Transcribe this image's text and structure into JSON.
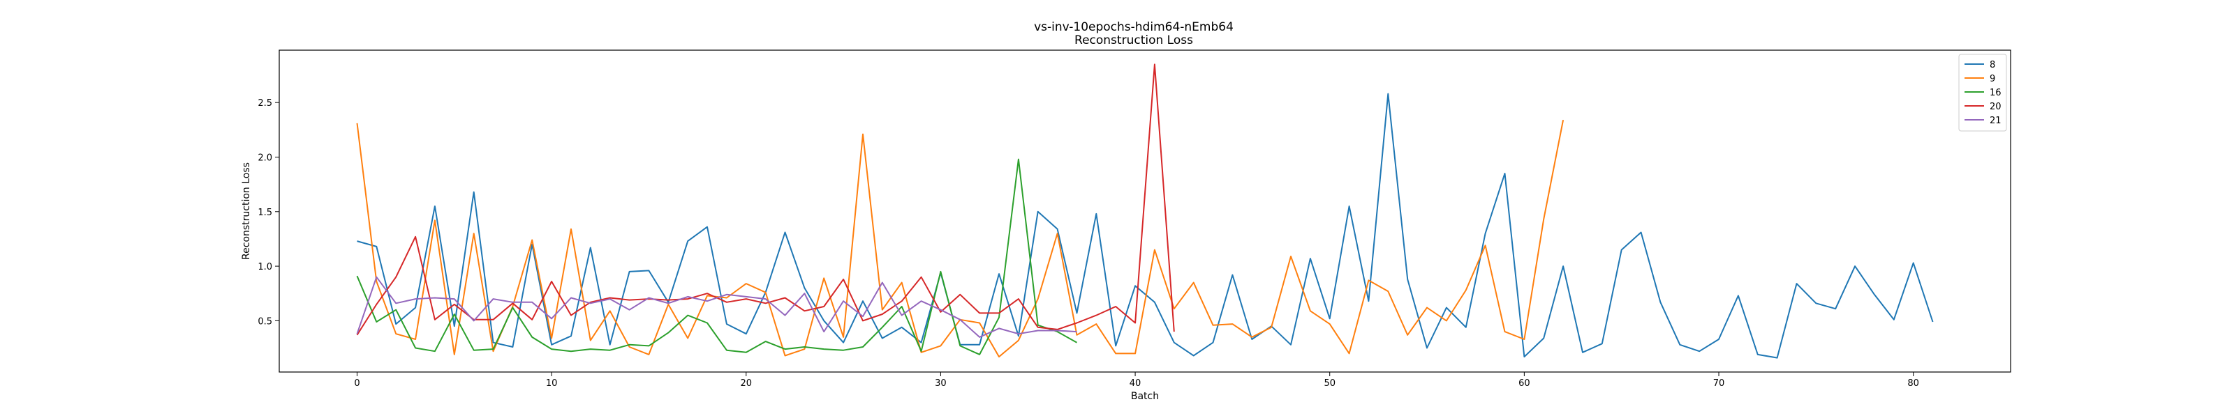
{
  "chart_data": {
    "type": "line",
    "title": "vs-inv-10epochs-hdim64-nEmb64",
    "subtitle": "Reconstruction Loss",
    "xlabel": "Batch",
    "ylabel": "Reconstruction Loss",
    "xlim": [
      -4,
      85
    ],
    "ylim": [
      0.03,
      2.98
    ],
    "xticks": [
      0,
      10,
      20,
      30,
      40,
      50,
      60,
      70,
      80
    ],
    "yticks": [
      0.5,
      1.0,
      1.5,
      2.0,
      2.5
    ],
    "ytick_labels": [
      "0.5",
      "1.0",
      "1.5",
      "2.0",
      "2.5"
    ],
    "grid": false,
    "legend_position": "top-right",
    "series": [
      {
        "name": "8",
        "color": "#1f77b4",
        "values": [
          1.23,
          1.18,
          0.47,
          0.62,
          1.55,
          0.45,
          1.68,
          0.3,
          0.26,
          1.2,
          0.28,
          0.36,
          1.17,
          0.28,
          0.95,
          0.96,
          0.67,
          1.23,
          1.36,
          0.47,
          0.38,
          0.76,
          1.31,
          0.8,
          0.5,
          0.3,
          0.68,
          0.34,
          0.44,
          0.3,
          0.94,
          0.28,
          0.28,
          0.93,
          0.36,
          1.5,
          1.34,
          0.57,
          1.48,
          0.27,
          0.82,
          0.67,
          0.3,
          0.18,
          0.3,
          0.92,
          0.33,
          0.45,
          0.28,
          1.07,
          0.52,
          1.55,
          0.68,
          2.58,
          0.88,
          0.25,
          0.62,
          0.44,
          1.3,
          1.85,
          0.17,
          0.34,
          1.0,
          0.21,
          0.29,
          1.15,
          1.31,
          0.67,
          0.28,
          0.22,
          0.33,
          0.73,
          0.19,
          0.16,
          0.84,
          0.66,
          0.61,
          1.0,
          0.74,
          0.51,
          1.03,
          0.49
        ]
      },
      {
        "name": "9",
        "color": "#ff7f0e",
        "values": [
          2.31,
          0.86,
          0.38,
          0.33,
          1.42,
          0.19,
          1.3,
          0.22,
          0.63,
          1.24,
          0.34,
          1.34,
          0.32,
          0.59,
          0.26,
          0.19,
          0.65,
          0.34,
          0.73,
          0.71,
          0.84,
          0.76,
          0.18,
          0.24,
          0.89,
          0.35,
          2.21,
          0.6,
          0.85,
          0.21,
          0.27,
          0.51,
          0.48,
          0.17,
          0.32,
          0.7,
          1.3,
          0.37,
          0.47,
          0.2,
          0.2,
          1.15,
          0.61,
          0.85,
          0.46,
          0.47,
          0.35,
          0.44,
          1.09,
          0.59,
          0.47,
          0.2,
          0.87,
          0.77,
          0.37,
          0.62,
          0.5,
          0.78,
          1.19,
          0.4,
          0.33,
          1.43,
          2.34
        ]
      },
      {
        "name": "16",
        "color": "#2ca02c",
        "values": [
          0.91,
          0.49,
          0.6,
          0.25,
          0.22,
          0.56,
          0.23,
          0.24,
          0.62,
          0.35,
          0.24,
          0.22,
          0.24,
          0.23,
          0.28,
          0.27,
          0.39,
          0.55,
          0.48,
          0.23,
          0.21,
          0.31,
          0.24,
          0.26,
          0.24,
          0.23,
          0.26,
          0.44,
          0.63,
          0.22,
          0.95,
          0.27,
          0.19,
          0.53,
          1.98,
          0.46,
          0.4,
          0.3
        ]
      },
      {
        "name": "20",
        "color": "#d62728",
        "values": [
          0.37,
          0.65,
          0.9,
          1.27,
          0.51,
          0.65,
          0.51,
          0.51,
          0.66,
          0.51,
          0.86,
          0.55,
          0.67,
          0.71,
          0.69,
          0.7,
          0.69,
          0.7,
          0.75,
          0.67,
          0.7,
          0.66,
          0.71,
          0.59,
          0.63,
          0.88,
          0.5,
          0.56,
          0.68,
          0.9,
          0.58,
          0.74,
          0.57,
          0.57,
          0.7,
          0.44,
          0.42,
          0.48,
          0.55,
          0.63,
          0.48,
          2.85,
          0.4
        ]
      },
      {
        "name": "21",
        "color": "#9467bd",
        "values": [
          0.38,
          0.9,
          0.66,
          0.7,
          0.71,
          0.7,
          0.5,
          0.7,
          0.67,
          0.67,
          0.52,
          0.71,
          0.66,
          0.7,
          0.6,
          0.71,
          0.66,
          0.72,
          0.68,
          0.74,
          0.72,
          0.7,
          0.55,
          0.75,
          0.4,
          0.68,
          0.54,
          0.85,
          0.55,
          0.68,
          0.6,
          0.51,
          0.35,
          0.43,
          0.38,
          0.41,
          0.41,
          0.4
        ]
      }
    ]
  }
}
